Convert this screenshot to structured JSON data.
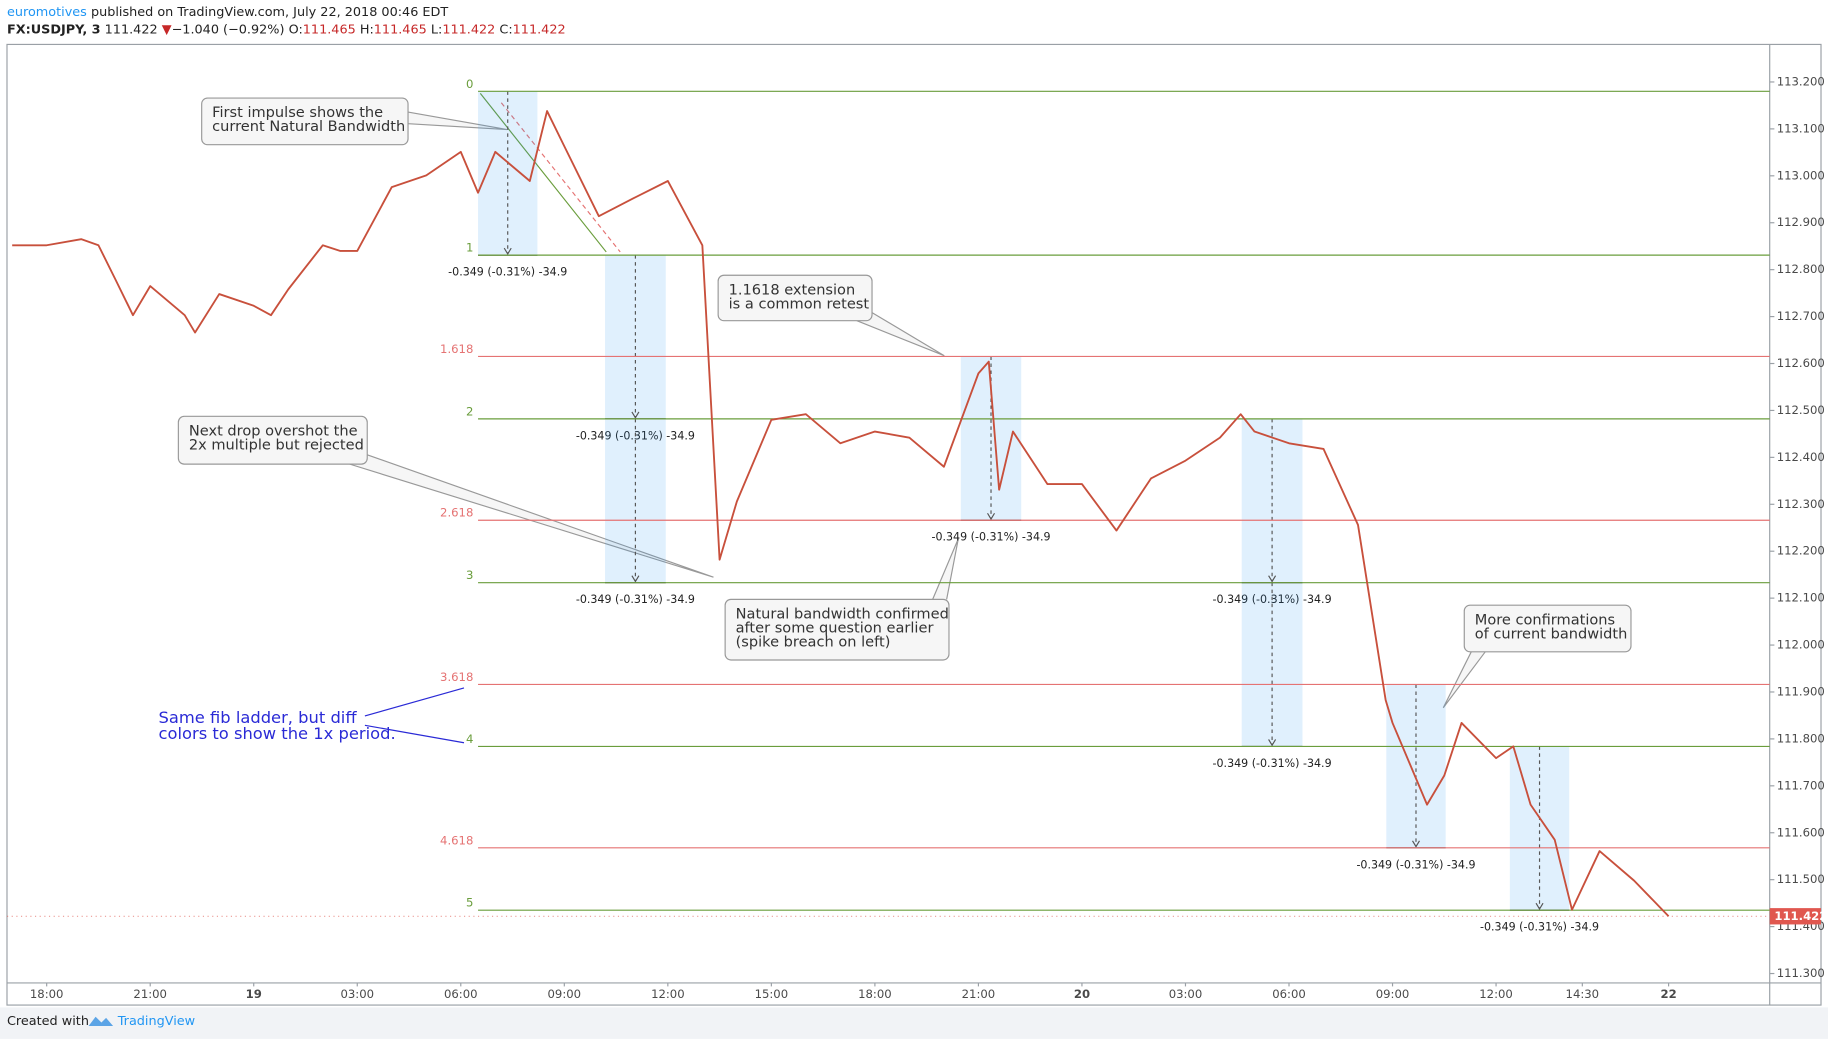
{
  "header": {
    "author": "euromotives",
    "published": "published on TradingView.com, July 22, 2018 00:46 EDT",
    "symbol": "FX:USDJPY, 3",
    "last": "111.422",
    "arrow": "▼",
    "change": "−1.040 (−0.92%)",
    "o_label": "O:",
    "open": "111.465",
    "h_label": "H:",
    "high": "111.465",
    "l_label": "L:",
    "low": "111.422",
    "c_label": "C:",
    "close": "111.422"
  },
  "chart_data": {
    "type": "line",
    "color": "#c8503c",
    "grid": false,
    "x": [
      -1,
      0,
      1,
      1.5,
      2,
      2.5,
      3,
      4,
      4.3,
      5,
      6,
      6.5,
      7,
      8,
      8.5,
      9,
      10,
      11,
      12,
      12.5,
      13,
      14,
      14.5,
      15,
      16,
      17,
      18,
      19,
      19.5,
      20,
      21,
      22,
      23,
      24,
      25,
      26,
      27,
      27.3,
      27.6,
      28,
      29,
      30,
      31,
      32,
      33,
      34,
      34.6,
      35,
      36,
      37,
      38,
      38.8,
      39,
      40,
      40.5,
      41,
      42,
      42.5,
      43,
      43.7,
      44.2,
      45,
      46,
      47
    ],
    "values": [
      112.852,
      112.852,
      112.865,
      112.852,
      112.778,
      112.703,
      112.765,
      112.703,
      112.666,
      112.748,
      112.723,
      112.703,
      112.758,
      112.852,
      112.84,
      112.84,
      112.976,
      113.001,
      113.051,
      112.964,
      113.051,
      112.989,
      113.138,
      113.063,
      112.914,
      112.952,
      112.989,
      112.852,
      112.182,
      112.306,
      112.48,
      112.492,
      112.43,
      112.455,
      112.442,
      112.38,
      112.579,
      112.604,
      112.331,
      112.455,
      112.343,
      112.343,
      112.244,
      112.355,
      112.393,
      112.442,
      112.492,
      112.455,
      112.43,
      112.418,
      112.256,
      111.883,
      111.834,
      111.66,
      111.722,
      111.834,
      111.759,
      111.784,
      111.66,
      111.585,
      111.436,
      111.561,
      111.498,
      111.422
    ],
    "xlim": [
      -1.15,
      49.93
    ],
    "xticks": [
      {
        "value": 0,
        "label": "18:00"
      },
      {
        "value": 3,
        "label": "21:00"
      },
      {
        "value": 6,
        "label": "19"
      },
      {
        "value": 9,
        "label": "03:00"
      },
      {
        "value": 12,
        "label": "06:00"
      },
      {
        "value": 15,
        "label": "09:00"
      },
      {
        "value": 18,
        "label": "12:00"
      },
      {
        "value": 21,
        "label": "15:00"
      },
      {
        "value": 24,
        "label": "18:00"
      },
      {
        "value": 27,
        "label": "21:00"
      },
      {
        "value": 30,
        "label": "20"
      },
      {
        "value": 33,
        "label": "03:00"
      },
      {
        "value": 36,
        "label": "06:00"
      },
      {
        "value": 39,
        "label": "09:00"
      },
      {
        "value": 42,
        "label": "12:00"
      },
      {
        "value": 44.5,
        "label": "14:30"
      },
      {
        "value": 47,
        "label": "22"
      }
    ],
    "ylim": [
      111.28,
      113.28
    ],
    "yticks": [
      {
        "value": 111.3,
        "label": "111.300"
      },
      {
        "value": 111.4,
        "label": "111.400"
      },
      {
        "value": 111.5,
        "label": "111.500"
      },
      {
        "value": 111.6,
        "label": "111.600"
      },
      {
        "value": 111.7,
        "label": "111.700"
      },
      {
        "value": 111.8,
        "label": "111.800"
      },
      {
        "value": 111.9,
        "label": "111.900"
      },
      {
        "value": 112,
        "label": "112.000"
      },
      {
        "value": 112.1,
        "label": "112.100"
      },
      {
        "value": 112.2,
        "label": "112.200"
      },
      {
        "value": 112.3,
        "label": "112.300"
      },
      {
        "value": 112.4,
        "label": "112.400"
      },
      {
        "value": 112.5,
        "label": "112.500"
      },
      {
        "value": 112.6,
        "label": "112.600"
      },
      {
        "value": 112.7,
        "label": "112.700"
      },
      {
        "value": 112.8,
        "label": "112.800"
      },
      {
        "value": 112.9,
        "label": "112.900"
      },
      {
        "value": 113,
        "label": "113.000"
      },
      {
        "value": 113.1,
        "label": "113.100"
      },
      {
        "value": 113.2,
        "label": "113.200"
      }
    ],
    "last_price": 111.422,
    "last_price_color": "#e0574f",
    "fib": {
      "t0": 12.5,
      "levels": [
        0,
        1,
        1.618,
        2,
        2.618,
        3,
        3.618,
        4,
        4.618,
        5
      ],
      "prices": [
        113.18,
        112.831,
        112.615,
        112.482,
        112.266,
        112.133,
        111.916,
        111.784,
        111.568,
        111.435
      ],
      "colors": [
        "#6a9d3c",
        "#6a9d3c",
        "#e57373",
        "#6a9d3c",
        "#e57373",
        "#6a9d3c",
        "#e57373",
        "#6a9d3c",
        "#e57373",
        "#6a9d3c"
      ]
    },
    "measures": [
      {
        "t0": 12.5,
        "t1": 14.22,
        "from": 113.18,
        "to": 112.831,
        "label": "-0.349 (-0.31%) -34.9"
      },
      {
        "t0": 16.18,
        "t1": 17.94,
        "from": 112.831,
        "to": 112.482,
        "label": "-0.349 (-0.31%) -34.9"
      },
      {
        "t0": 16.18,
        "t1": 17.94,
        "from": 112.482,
        "to": 112.133,
        "label": "-0.349 (-0.31%) -34.9"
      },
      {
        "t0": 26.49,
        "t1": 28.24,
        "from": 112.615,
        "to": 112.266,
        "label": "-0.349 (-0.31%) -34.9"
      },
      {
        "t0": 34.63,
        "t1": 36.39,
        "from": 112.482,
        "to": 112.133,
        "label": "-0.349 (-0.31%) -34.9"
      },
      {
        "t0": 34.63,
        "t1": 36.39,
        "from": 112.133,
        "to": 111.784,
        "label": "-0.349 (-0.31%) -34.9"
      },
      {
        "t0": 38.82,
        "t1": 40.54,
        "from": 111.916,
        "to": 111.568,
        "label": "-0.349 (-0.31%) -34.9"
      },
      {
        "t0": 42.4,
        "t1": 44.12,
        "from": 111.784,
        "to": 111.435,
        "label": "-0.349 (-0.31%) -34.9"
      }
    ],
    "annotations": [
      {
        "lines": [
          "First impulse shows the",
          "current Natural Bandwidth"
        ]
      },
      {
        "lines": [
          "1.1618 extension",
          "is a common retest"
        ]
      },
      {
        "lines": [
          "Next drop overshot the",
          "2x multiple but rejected"
        ]
      },
      {
        "lines": [
          "Natural bandwidth confirmed",
          "after some question earlier",
          "(spike breach on left)"
        ]
      },
      {
        "lines": [
          "More confirmations",
          "of current bandwidth"
        ]
      },
      {
        "lines": [
          "Same fib ladder, but diff",
          "colors to show the 1x period."
        ]
      }
    ]
  },
  "footer": {
    "created": "Created with",
    "brand": "TradingView"
  }
}
